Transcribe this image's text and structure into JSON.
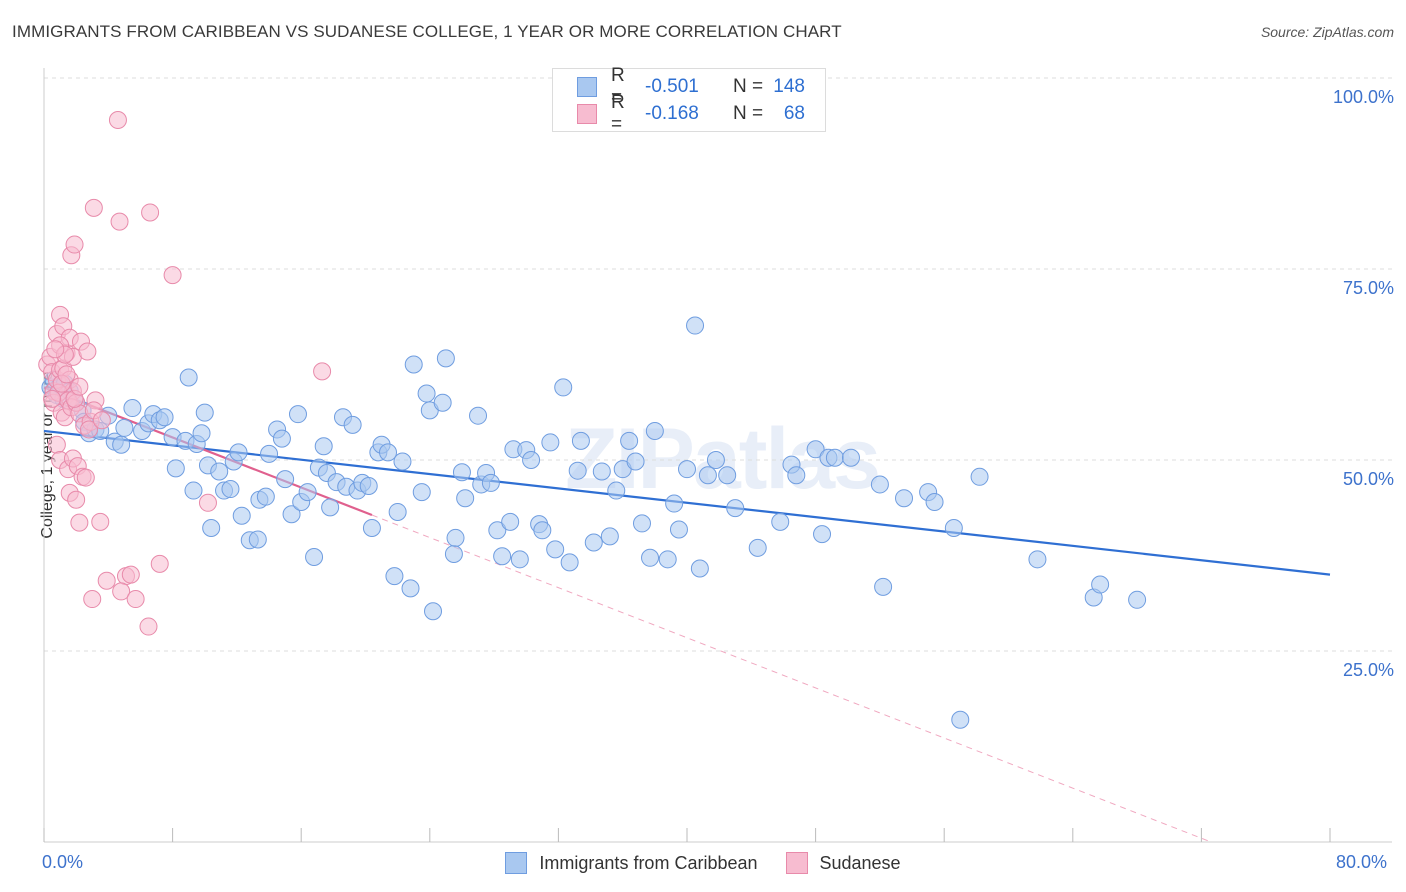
{
  "title": "IMMIGRANTS FROM CARIBBEAN VS SUDANESE COLLEGE, 1 YEAR OR MORE CORRELATION CHART",
  "source": "Source: ZipAtlas.com",
  "watermark": "ZIPatlas",
  "legend": {
    "rows": [
      {
        "r_label": "R =",
        "r_value": "-0.501",
        "n_label": "N =",
        "n_value": "148",
        "color": "#a9c8f0",
        "border": "#6f9de0"
      },
      {
        "r_label": "R =",
        "r_value": "-0.168",
        "n_label": "N =",
        "n_value": "68",
        "color": "#f7bcd0",
        "border": "#e88aaa"
      }
    ]
  },
  "bottom_legend": [
    {
      "label": "Immigrants from Caribbean",
      "color": "#a9c8f0",
      "border": "#6f9de0"
    },
    {
      "label": "Sudanese",
      "color": "#f7bcd0",
      "border": "#e88aaa"
    }
  ],
  "x_tick_labels": {
    "left": "0.0%",
    "right": "80.0%"
  },
  "y_tick_labels": [
    "100.0%",
    "75.0%",
    "50.0%",
    "25.0%"
  ],
  "chart_data": {
    "type": "scatter",
    "title": "IMMIGRANTS FROM CARIBBEAN VS SUDANESE COLLEGE, 1 YEAR OR MORE CORRELATION CHART",
    "xlabel": "",
    "ylabel": "College, 1 year or more",
    "xlim": [
      0,
      80
    ],
    "ylim": [
      0,
      100
    ],
    "grid": true,
    "y_ticks": [
      25,
      50,
      75,
      100
    ],
    "series": [
      {
        "name": "Immigrants from Caribbean",
        "color": "#6f9de0",
        "fill": "#a9c8f0",
        "trend": {
          "x": [
            0,
            80
          ],
          "y": [
            53.8,
            35.0
          ],
          "style": "solid",
          "color": "#2f6fd3"
        },
        "points": [
          [
            0.4,
            59.5
          ],
          [
            0.6,
            60.5
          ],
          [
            0.8,
            58.5
          ],
          [
            1.0,
            59.8
          ],
          [
            1.3,
            60.0
          ],
          [
            1.2,
            58.0
          ],
          [
            1.6,
            59.0
          ],
          [
            2.0,
            57.5
          ],
          [
            2.4,
            56.5
          ],
          [
            2.5,
            55.0
          ],
          [
            2.8,
            53.5
          ],
          [
            3.2,
            54.0
          ],
          [
            3.5,
            53.8
          ],
          [
            4.0,
            55.8
          ],
          [
            4.4,
            52.4
          ],
          [
            4.8,
            52.0
          ],
          [
            5.0,
            54.2
          ],
          [
            5.5,
            56.8
          ],
          [
            6.1,
            53.8
          ],
          [
            6.5,
            54.8
          ],
          [
            6.8,
            56.0
          ],
          [
            7.2,
            55.2
          ],
          [
            7.5,
            55.6
          ],
          [
            8.0,
            53.0
          ],
          [
            8.2,
            48.9
          ],
          [
            8.8,
            52.5
          ],
          [
            9.0,
            60.8
          ],
          [
            9.5,
            52.1
          ],
          [
            9.3,
            46.0
          ],
          [
            9.8,
            53.5
          ],
          [
            10.0,
            56.2
          ],
          [
            10.2,
            49.3
          ],
          [
            10.4,
            41.1
          ],
          [
            10.9,
            48.5
          ],
          [
            11.2,
            46.0
          ],
          [
            11.6,
            46.2
          ],
          [
            11.8,
            49.8
          ],
          [
            12.1,
            51.0
          ],
          [
            12.3,
            42.7
          ],
          [
            12.8,
            39.5
          ],
          [
            13.3,
            39.6
          ],
          [
            13.4,
            44.8
          ],
          [
            13.8,
            45.2
          ],
          [
            14.0,
            50.8
          ],
          [
            14.5,
            54.0
          ],
          [
            14.8,
            52.8
          ],
          [
            15.0,
            47.5
          ],
          [
            15.4,
            42.9
          ],
          [
            15.8,
            56.0
          ],
          [
            16.0,
            44.5
          ],
          [
            16.4,
            45.8
          ],
          [
            16.8,
            37.3
          ],
          [
            17.1,
            49.0
          ],
          [
            17.4,
            51.8
          ],
          [
            17.6,
            48.3
          ],
          [
            17.8,
            43.8
          ],
          [
            18.2,
            47.1
          ],
          [
            18.6,
            55.6
          ],
          [
            18.8,
            46.5
          ],
          [
            19.2,
            54.6
          ],
          [
            19.5,
            46.0
          ],
          [
            19.8,
            47.0
          ],
          [
            20.2,
            46.6
          ],
          [
            20.4,
            41.1
          ],
          [
            20.8,
            51.0
          ],
          [
            21.0,
            52.0
          ],
          [
            21.4,
            51.0
          ],
          [
            21.8,
            34.8
          ],
          [
            22.0,
            43.2
          ],
          [
            22.3,
            49.8
          ],
          [
            22.8,
            33.2
          ],
          [
            23.0,
            62.5
          ],
          [
            23.5,
            45.8
          ],
          [
            23.8,
            58.7
          ],
          [
            24.0,
            56.5
          ],
          [
            24.2,
            30.2
          ],
          [
            24.8,
            57.5
          ],
          [
            25.0,
            63.3
          ],
          [
            25.5,
            37.7
          ],
          [
            25.6,
            39.8
          ],
          [
            26.0,
            48.4
          ],
          [
            26.2,
            45.0
          ],
          [
            27.0,
            55.8
          ],
          [
            27.2,
            46.8
          ],
          [
            27.5,
            48.3
          ],
          [
            27.8,
            47.0
          ],
          [
            28.2,
            40.8
          ],
          [
            28.5,
            37.4
          ],
          [
            29.0,
            41.9
          ],
          [
            29.2,
            51.4
          ],
          [
            29.6,
            37.0
          ],
          [
            30.0,
            51.3
          ],
          [
            30.3,
            50.0
          ],
          [
            30.8,
            41.6
          ],
          [
            31.0,
            40.8
          ],
          [
            31.5,
            52.3
          ],
          [
            31.8,
            38.3
          ],
          [
            32.3,
            59.5
          ],
          [
            32.7,
            36.6
          ],
          [
            33.2,
            48.6
          ],
          [
            33.4,
            52.5
          ],
          [
            34.2,
            39.2
          ],
          [
            34.7,
            48.5
          ],
          [
            35.2,
            40.0
          ],
          [
            35.6,
            46.0
          ],
          [
            36.0,
            48.8
          ],
          [
            36.4,
            52.5
          ],
          [
            36.8,
            49.8
          ],
          [
            37.2,
            41.7
          ],
          [
            37.7,
            37.2
          ],
          [
            38.0,
            53.8
          ],
          [
            38.8,
            37.0
          ],
          [
            39.2,
            44.3
          ],
          [
            39.5,
            40.9
          ],
          [
            40.0,
            48.8
          ],
          [
            40.5,
            67.6
          ],
          [
            40.8,
            35.8
          ],
          [
            41.3,
            48.0
          ],
          [
            41.8,
            50.0
          ],
          [
            42.5,
            48.0
          ],
          [
            43.0,
            43.7
          ],
          [
            44.4,
            38.5
          ],
          [
            45.8,
            41.9
          ],
          [
            46.5,
            49.4
          ],
          [
            46.8,
            48.0
          ],
          [
            48.0,
            51.4
          ],
          [
            48.4,
            40.3
          ],
          [
            48.8,
            50.3
          ],
          [
            49.2,
            50.3
          ],
          [
            50.2,
            50.3
          ],
          [
            52.0,
            46.8
          ],
          [
            52.2,
            33.4
          ],
          [
            53.5,
            45.0
          ],
          [
            55.0,
            45.8
          ],
          [
            55.4,
            44.5
          ],
          [
            56.6,
            41.1
          ],
          [
            57.0,
            16.0
          ],
          [
            58.2,
            47.8
          ],
          [
            61.8,
            37.0
          ],
          [
            65.3,
            32.0
          ],
          [
            65.7,
            33.7
          ],
          [
            68.0,
            31.7
          ]
        ]
      },
      {
        "name": "Sudanese",
        "color": "#e88aaa",
        "fill": "#f7bcd0",
        "trend": {
          "x": [
            0,
            20.4
          ],
          "y": [
            59.5,
            42.8
          ],
          "style": "solid",
          "color": "#e0608e",
          "extension": {
            "x": [
              20.4,
              72.6
            ],
            "y": [
              42.8,
              0.0
            ],
            "style": "dashed"
          }
        },
        "points": [
          [
            0.2,
            62.5
          ],
          [
            0.4,
            63.5
          ],
          [
            0.5,
            61.5
          ],
          [
            0.6,
            59.0
          ],
          [
            0.8,
            60.5
          ],
          [
            1.0,
            61.8
          ],
          [
            1.2,
            62.0
          ],
          [
            1.4,
            58.5
          ],
          [
            1.6,
            60.5
          ],
          [
            1.8,
            59.0
          ],
          [
            0.6,
            57.5
          ],
          [
            0.9,
            58.8
          ],
          [
            1.1,
            56.2
          ],
          [
            1.3,
            55.6
          ],
          [
            1.5,
            57.8
          ],
          [
            1.7,
            56.9
          ],
          [
            2.0,
            57.5
          ],
          [
            2.2,
            56.1
          ],
          [
            2.5,
            54.5
          ],
          [
            2.9,
            55.0
          ],
          [
            0.8,
            66.5
          ],
          [
            1.0,
            69.0
          ],
          [
            1.2,
            67.5
          ],
          [
            1.4,
            64.0
          ],
          [
            1.6,
            66.0
          ],
          [
            1.8,
            63.5
          ],
          [
            2.3,
            65.5
          ],
          [
            2.7,
            64.2
          ],
          [
            1.0,
            65.0
          ],
          [
            1.3,
            63.8
          ],
          [
            0.8,
            52.0
          ],
          [
            1.0,
            50.0
          ],
          [
            1.5,
            48.8
          ],
          [
            1.8,
            50.2
          ],
          [
            2.1,
            49.2
          ],
          [
            2.4,
            47.8
          ],
          [
            2.6,
            47.7
          ],
          [
            1.6,
            45.7
          ],
          [
            2.0,
            44.8
          ],
          [
            2.2,
            41.8
          ],
          [
            3.5,
            41.9
          ],
          [
            3.2,
            57.8
          ],
          [
            2.8,
            54.0
          ],
          [
            3.1,
            56.5
          ],
          [
            3.6,
            55.2
          ],
          [
            1.7,
            76.8
          ],
          [
            1.9,
            78.2
          ],
          [
            3.1,
            83.0
          ],
          [
            4.7,
            81.2
          ],
          [
            6.6,
            82.4
          ],
          [
            8.0,
            74.2
          ],
          [
            4.6,
            94.5
          ],
          [
            17.3,
            61.6
          ],
          [
            10.2,
            44.4
          ],
          [
            3.0,
            31.8
          ],
          [
            3.9,
            34.2
          ],
          [
            5.1,
            34.8
          ],
          [
            5.4,
            35.0
          ],
          [
            6.5,
            28.2
          ],
          [
            7.2,
            36.4
          ],
          [
            4.8,
            32.8
          ],
          [
            5.7,
            31.8
          ],
          [
            0.5,
            58.0
          ],
          [
            1.1,
            60.0
          ],
          [
            1.4,
            61.2
          ],
          [
            0.7,
            64.5
          ],
          [
            1.9,
            58.0
          ],
          [
            2.2,
            59.6
          ]
        ]
      }
    ]
  }
}
